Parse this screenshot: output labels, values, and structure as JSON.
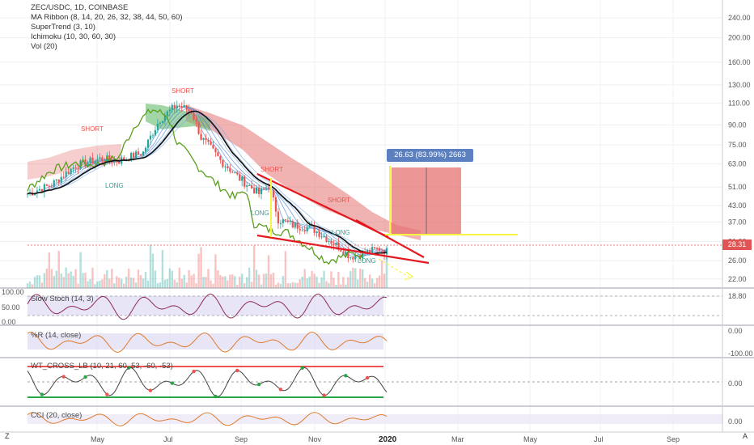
{
  "legend": {
    "symbol_line": "ZEC/USDC, 1D, COINBASE",
    "indicators": [
      "MA Ribbon (8, 14, 20, 26, 32, 38, 44, 50, 60)",
      "SuperTrend (3, 10)",
      "Ichimoku (10, 30, 60, 30)",
      "Vol (20)"
    ]
  },
  "price_axis": [
    "240.00",
    "200.00",
    "160.00",
    "130.00",
    "110.00",
    "90.00",
    "75.00",
    "63.00",
    "51.00",
    "43.00",
    "37.00",
    "31.00",
    "26.00",
    "22.00",
    "18.80"
  ],
  "current_price": "28.31",
  "measure_label": "26.63 (83.99%) 2663",
  "signals": {
    "short": "SHORT",
    "long": "LONG"
  },
  "time_axis": [
    "May",
    "Jul",
    "Sep",
    "Nov",
    "2020",
    "Mar",
    "May",
    "Jul",
    "Sep"
  ],
  "panes": {
    "stoch": {
      "label": "Slow Stoch (14, 3)",
      "ticks": [
        "100.00",
        "50.00",
        "0.00"
      ]
    },
    "wr": {
      "label": "%R (14, close)",
      "ticks": [
        "0.00",
        "-100.00"
      ]
    },
    "wt": {
      "label": "WT_CROSS_LB (10, 21, 60, 53, -60, -53)",
      "ticks": [
        "0.00"
      ]
    },
    "cci": {
      "label": "CCI (20, close)",
      "ticks": [
        "0.00"
      ]
    }
  },
  "buttons": {
    "z": "Z",
    "a": "A"
  },
  "colors": {
    "up": "#26a69a",
    "down": "#ef5350",
    "trend": "#e4181e",
    "highlight": "#f5f542",
    "cloud_red": "#e57373",
    "cloud_green": "#66bb6a",
    "lagging": "#5a9e1b",
    "stoch": "#8e2a5a",
    "wr": "#e07a2a"
  }
}
